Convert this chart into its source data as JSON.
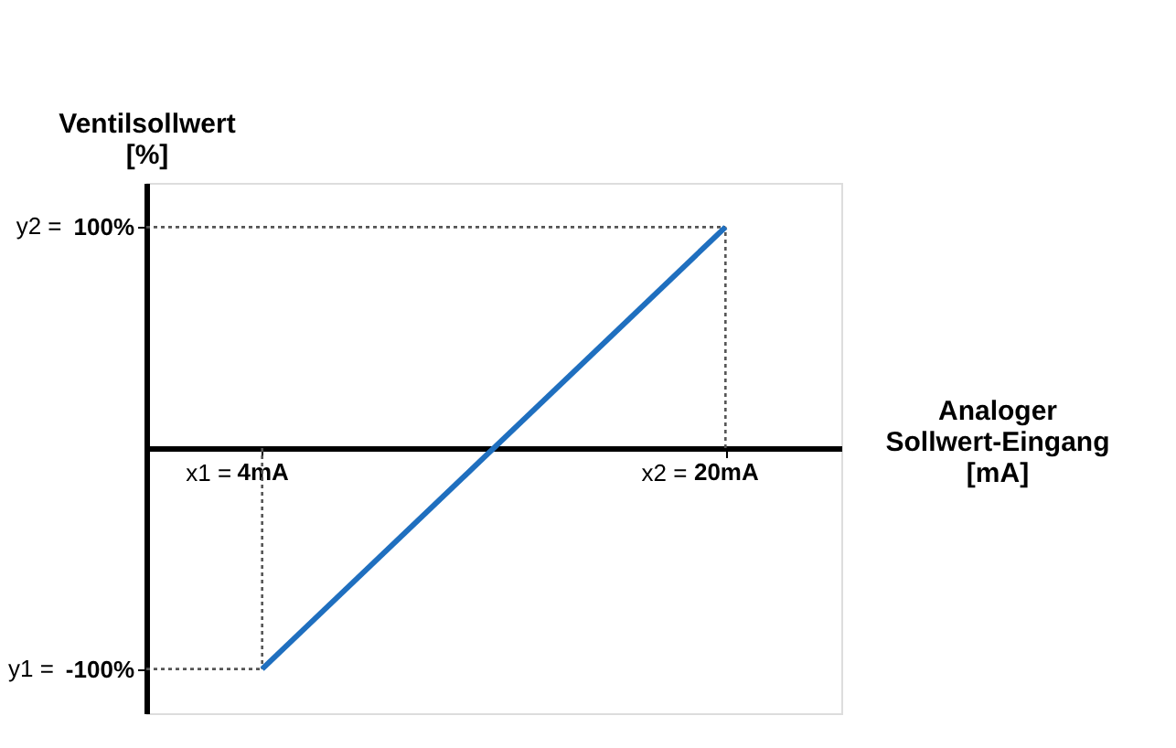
{
  "chart_data": {
    "type": "line",
    "xlabel": "Analoger\nSollwert-Eingang\n[mA]",
    "ylabel": "Ventilsollwert\n[%]",
    "x": [
      4,
      20
    ],
    "series": [
      {
        "color": "#1f6fbf",
        "values": [
          -100,
          100
        ]
      }
    ],
    "xlim": [
      0,
      24
    ],
    "ylim": [
      -120,
      120
    ],
    "xticks": [
      {
        "value": 4,
        "label": "4mA"
      },
      {
        "value": 20,
        "label": "20mA"
      }
    ],
    "yticks": [
      {
        "value": -100,
        "label": "-100%"
      },
      {
        "value": 100,
        "label": "100%"
      }
    ],
    "annotations": [
      {
        "text": "x1 =",
        "x": 4,
        "y": 0
      },
      {
        "text": "x2 =",
        "x": 20,
        "y": 0
      },
      "y1 =",
      "y2 ="
    ],
    "ref_lines": [
      {
        "axis": "x",
        "value": 4,
        "color": "#555555",
        "line_style": "dotted"
      },
      {
        "axis": "x",
        "value": 20,
        "color": "#555555",
        "line_style": "dotted"
      },
      {
        "axis": "y",
        "value": -100,
        "color": "#555555",
        "line_style": "dotted"
      },
      {
        "axis": "y",
        "value": 100,
        "color": "#555555",
        "line_style": "dotted"
      }
    ],
    "grid": false
  }
}
